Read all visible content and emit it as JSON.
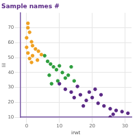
{
  "chart_data": {
    "type": "scatter",
    "title": "Sample names #",
    "x_label": "irwt",
    "y_label": "lil",
    "xlim": [
      -2,
      32
    ],
    "xticks": [
      0,
      10,
      20,
      30
    ],
    "ylim": [
      10,
      80
    ],
    "yticks": [
      10,
      20,
      30,
      40,
      50,
      60,
      70
    ],
    "grid": true,
    "series": [
      {
        "color": "#f0a020",
        "marker": "circle",
        "x": [
          0.4,
          0.4,
          0.9,
          0,
          1.5,
          1.8,
          2.7,
          3.6,
          0.4,
          1.8,
          4.5,
          0.9,
          3.3,
          1.5,
          0
        ],
        "values": [
          73,
          70,
          67,
          63.3,
          60.6,
          58,
          55.8,
          54.3,
          53.1,
          51.3,
          52,
          49.4,
          48.3,
          46.8,
          56.9
        ]
      },
      {
        "color": "#2e9e3e",
        "marker": "circle",
        "x": [
          5.5,
          6.4,
          7.3,
          8.2,
          9.1,
          10,
          10.9,
          11.8,
          12.7,
          14.5,
          6.9,
          9.5,
          13.6,
          7.6
        ],
        "values": [
          51.3,
          47.5,
          45.7,
          43.8,
          41.9,
          44.5,
          40,
          36.3,
          38.2,
          34.4,
          38.2,
          34.4,
          43.8,
          32.5
        ]
      },
      {
        "color": "#5b2a86",
        "marker": "circle",
        "x": [
          10,
          11.8,
          13.6,
          15.5,
          16.4,
          18.2,
          20,
          21.8,
          23.6,
          25.5,
          26.4,
          27.3,
          29.1,
          30.9,
          17.3,
          19.1,
          14.5,
          25.5,
          22.7,
          20.9
        ],
        "values": [
          32.5,
          28.8,
          26.9,
          30.7,
          25.1,
          21.3,
          23.2,
          19.4,
          17.6,
          15.7,
          12,
          14.6,
          13.8,
          12.7,
          17.6,
          26.9,
          23.2,
          10.1,
          25.1,
          28.8
        ]
      }
    ]
  }
}
